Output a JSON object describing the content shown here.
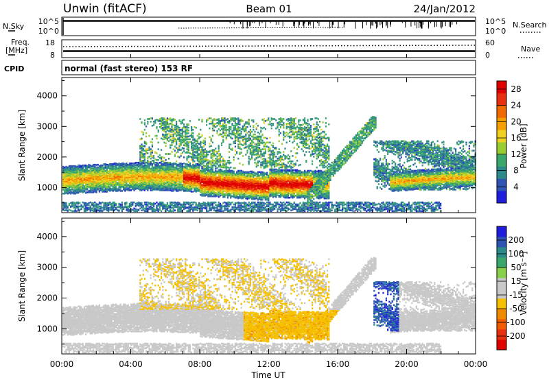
{
  "header": {
    "station": "Unwin (fitACF)",
    "beam": "Beam 01",
    "date": "24/Jan/2012"
  },
  "strips": {
    "nsky_label": "N.Sky",
    "nsky_ticks": [
      "10^5",
      "10^0"
    ],
    "nsearch_label": "N.Search",
    "nsearch_ticks": [
      "10^5",
      "10^0"
    ],
    "freq_label_1": "Freq.",
    "freq_label_2": "[MHz]",
    "freq_ticks": [
      "18",
      "8"
    ],
    "nave_label": "Nave",
    "nave_ticks": [
      "60",
      "0"
    ],
    "cpid_label": "CPID",
    "cpid_text": "normal (fast stereo) 153 RF"
  },
  "colors": {
    "power_scale": [
      "#1e1edc",
      "#2f54b4",
      "#2e8a8a",
      "#3aa86a",
      "#9acd32",
      "#f0d020",
      "#f5a000",
      "#f06a00",
      "#e83010",
      "#e00000"
    ],
    "velocity_scale": [
      "#1e1edc",
      "#2f54b4",
      "#2e8a8a",
      "#3aa86a",
      "#8bd04a",
      "#c8c8c8",
      "#c8c8c8",
      "#f5c000",
      "#f08a00",
      "#f05a00",
      "#e83010",
      "#e00000"
    ],
    "ground_scatter": "#c0c0c0"
  },
  "chart_data": [
    {
      "type": "heatmap",
      "quantity": "power",
      "xlabel": "",
      "ylabel": "Slant Range [km]",
      "x_ticks": [
        "00:00",
        "04:00",
        "08:00",
        "12:00",
        "16:00",
        "20:00",
        "00:00"
      ],
      "x_range_hours": [
        0,
        24
      ],
      "y_ticks": [
        "1000",
        "2000",
        "3000",
        "4000"
      ],
      "ylim": [
        180,
        4600
      ],
      "colorbar": {
        "label": "Power [dB]",
        "ticks": [
          "4",
          "8",
          "12",
          "16",
          "20",
          "24",
          "28"
        ],
        "range": [
          0,
          30
        ]
      }
    },
    {
      "type": "heatmap",
      "quantity": "velocity",
      "xlabel": "Time UT",
      "ylabel": "Slant Range [km]",
      "x_ticks": [
        "00:00",
        "04:00",
        "08:00",
        "12:00",
        "16:00",
        "20:00",
        "00:00"
      ],
      "x_range_hours": [
        0,
        24
      ],
      "y_ticks": [
        "1000",
        "2000",
        "3000",
        "4000"
      ],
      "ylim": [
        180,
        4600
      ],
      "colorbar": {
        "label": "Velocity [m s⁻¹]",
        "ticks": [
          "200",
          "100",
          "50",
          "15",
          "-15",
          "-50",
          "-100",
          "-200"
        ],
        "range": [
          -250,
          250
        ]
      }
    }
  ]
}
